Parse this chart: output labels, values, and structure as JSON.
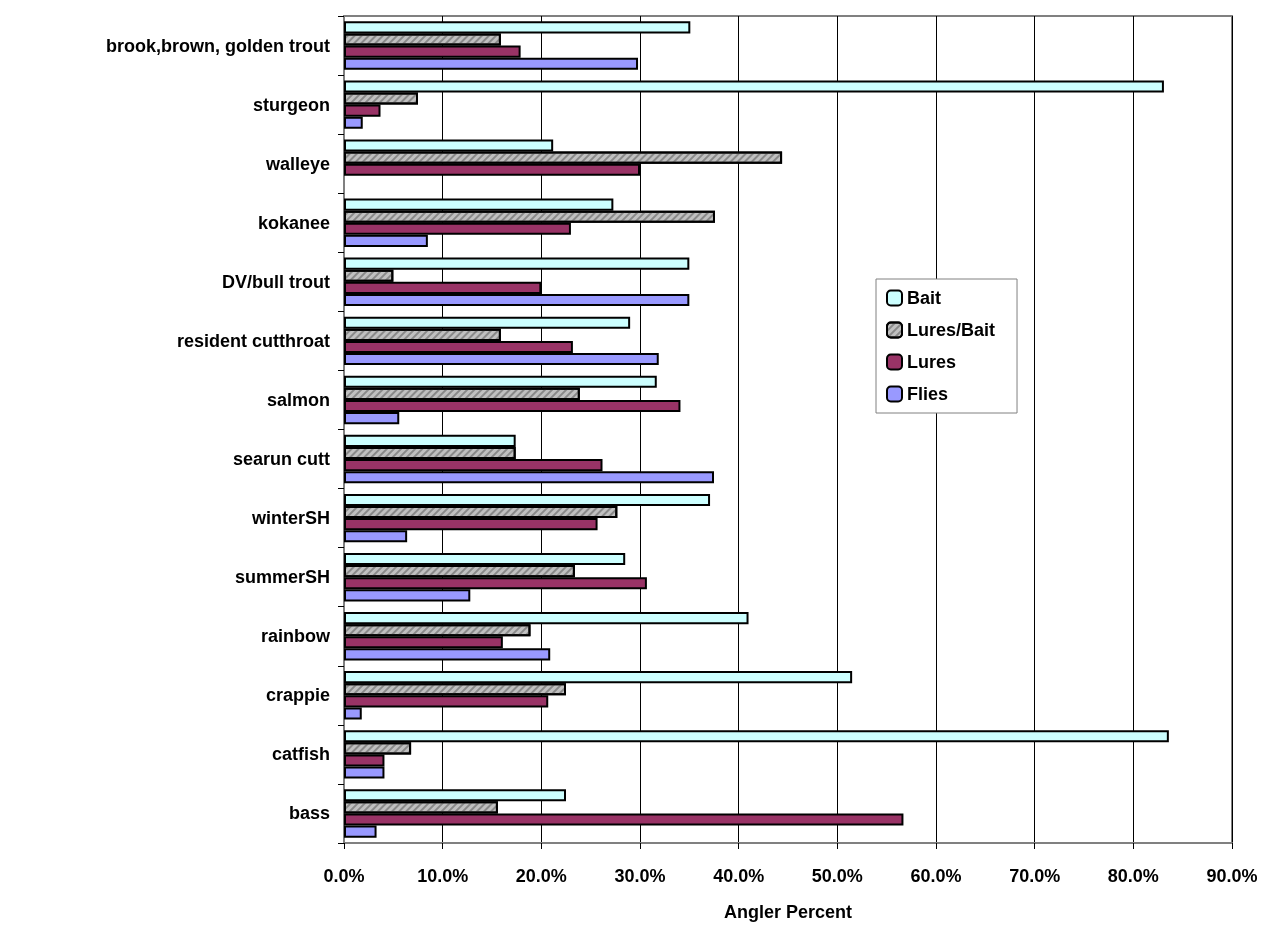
{
  "chart_data": {
    "type": "bar",
    "orientation": "horizontal",
    "xlabel": "Angler Percent",
    "categories": [
      "brook,brown, golden trout",
      "sturgeon",
      "walleye",
      "kokanee",
      "DV/bull trout",
      "resident cutthroat",
      "salmon",
      "searun cutt",
      "winterSH",
      "summerSH",
      "rainbow",
      "crappie",
      "catfish",
      "bass"
    ],
    "series": [
      {
        "name": "Bait",
        "color": "#ccffff",
        "values": [
          35.1,
          83.1,
          21.2,
          27.3,
          35.0,
          29.0,
          31.7,
          17.4,
          37.1,
          28.5,
          41.0,
          51.5,
          83.6,
          22.5
        ]
      },
      {
        "name": "Lures/Bait",
        "color": "#c0c0c0",
        "values": [
          15.9,
          7.5,
          44.4,
          37.6,
          5.0,
          15.9,
          23.9,
          17.4,
          27.7,
          23.4,
          18.9,
          22.5,
          6.8,
          15.6
        ]
      },
      {
        "name": "Lures",
        "color": "#993366",
        "values": [
          17.9,
          3.7,
          30.0,
          23.0,
          20.0,
          23.2,
          34.1,
          26.2,
          25.7,
          30.7,
          16.1,
          20.7,
          4.1,
          56.7
        ]
      },
      {
        "name": "Flies",
        "color": "#9999ff",
        "values": [
          29.8,
          1.9,
          null,
          8.5,
          35.0,
          31.9,
          5.6,
          37.5,
          6.4,
          12.8,
          20.9,
          1.8,
          4.1,
          3.3
        ]
      }
    ],
    "xlim": [
      0,
      90
    ],
    "xticks": [
      {
        "value": 0,
        "label": "0.0%"
      },
      {
        "value": 10,
        "label": "10.0%"
      },
      {
        "value": 20,
        "label": "20.0%"
      },
      {
        "value": 30,
        "label": "30.0%"
      },
      {
        "value": 40,
        "label": "40.0%"
      },
      {
        "value": 50,
        "label": "50.0%"
      },
      {
        "value": 60,
        "label": "60.0%"
      },
      {
        "value": 70,
        "label": "70.0%"
      },
      {
        "value": 80,
        "label": "80.0%"
      },
      {
        "value": 90,
        "label": "90.0%"
      }
    ],
    "grid": "x",
    "legend": "right"
  }
}
